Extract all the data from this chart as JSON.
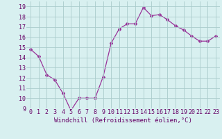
{
  "hours": [
    0,
    1,
    2,
    3,
    4,
    5,
    6,
    7,
    8,
    9,
    10,
    11,
    12,
    13,
    14,
    15,
    16,
    17,
    18,
    19,
    20,
    21,
    22,
    23
  ],
  "values": [
    14.8,
    14.1,
    12.3,
    11.8,
    10.5,
    8.8,
    10.0,
    10.0,
    10.0,
    12.1,
    15.4,
    16.8,
    17.3,
    17.3,
    18.9,
    18.1,
    18.2,
    17.7,
    17.1,
    16.7,
    16.1,
    15.6,
    15.6,
    16.1
  ],
  "line_color": "#993399",
  "marker": "D",
  "marker_size": 2.0,
  "bg_color": "#d8f0f0",
  "grid_color": "#aacccc",
  "xlabel": "Windchill (Refroidissement éolien,°C)",
  "ylim": [
    9,
    19.5
  ],
  "yticks": [
    9,
    10,
    11,
    12,
    13,
    14,
    15,
    16,
    17,
    18,
    19
  ],
  "xtick_labels": [
    "0",
    "1",
    "2",
    "3",
    "4",
    "5",
    "6",
    "7",
    "8",
    "9",
    "10",
    "11",
    "12",
    "13",
    "14",
    "15",
    "16",
    "17",
    "18",
    "19",
    "20",
    "21",
    "22",
    "23"
  ],
  "label_fontsize": 6.5,
  "tick_fontsize": 6.0
}
